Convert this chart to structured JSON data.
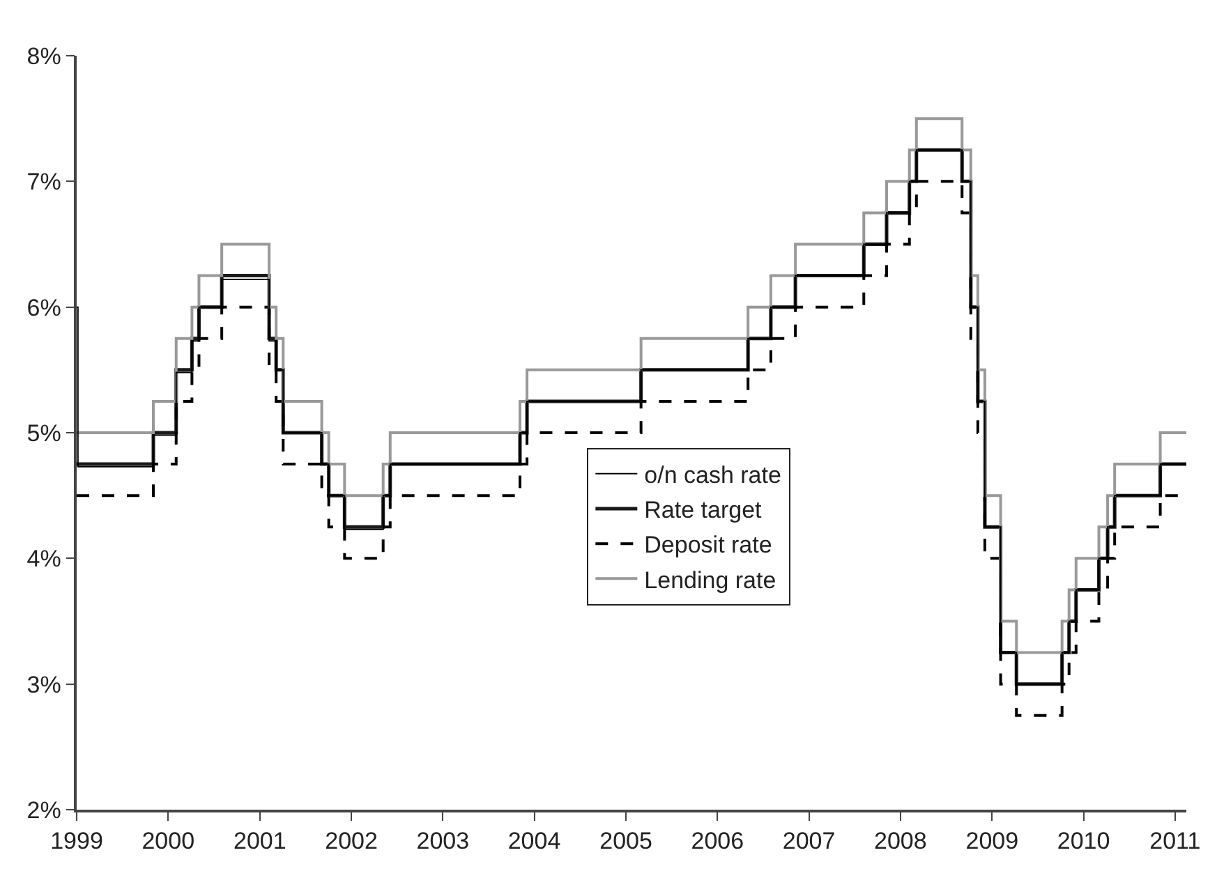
{
  "chart_data": {
    "type": "step",
    "xlim": [
      "1999-01-01",
      "2011-02-15"
    ],
    "xticks": [
      "1999",
      "2000",
      "2001",
      "2002",
      "2003",
      "2004",
      "2005",
      "2006",
      "2007",
      "2008",
      "2009",
      "2010",
      "2011"
    ],
    "ylim": [
      2,
      8
    ],
    "yticks": [
      {
        "value": 2,
        "label": "2%"
      },
      {
        "value": 3,
        "label": "3%"
      },
      {
        "value": 4,
        "label": "4%"
      },
      {
        "value": 5,
        "label": "5%"
      },
      {
        "value": 6,
        "label": "6%"
      },
      {
        "value": 7,
        "label": "7%"
      },
      {
        "value": 8,
        "label": "8%"
      }
    ],
    "x": [
      "1999-01-01",
      "1999-11-03",
      "2000-02-02",
      "2000-04-05",
      "2000-05-03",
      "2000-08-02",
      "2001-02-07",
      "2001-03-07",
      "2001-04-04",
      "2001-09-05",
      "2001-10-03",
      "2001-12-05",
      "2002-05-08",
      "2002-06-05",
      "2003-11-05",
      "2003-12-03",
      "2005-03-02",
      "2006-05-03",
      "2006-08-02",
      "2006-11-08",
      "2007-08-08",
      "2007-11-07",
      "2008-02-06",
      "2008-03-05",
      "2008-09-03",
      "2008-10-08",
      "2008-11-05",
      "2008-12-03",
      "2009-02-04",
      "2009-04-08",
      "2009-10-07",
      "2009-11-04",
      "2009-12-02",
      "2010-03-03",
      "2010-04-07",
      "2010-05-05",
      "2010-11-03",
      "2011-02-15"
    ],
    "grid": false,
    "legend": "center",
    "marker": "none",
    "series": [
      {
        "name": "o/n cash rate",
        "color": "#000000",
        "line_style": "solid",
        "x": [
          "1999-01-01",
          "1999-01-06",
          "1999-11-03",
          "2000-02-02",
          "2000-04-05",
          "2000-05-03",
          "2000-08-02",
          "2001-02-07",
          "2001-03-07",
          "2001-04-04",
          "2001-09-05",
          "2001-10-03",
          "2001-12-05",
          "2002-05-08",
          "2002-06-05",
          "2003-11-05",
          "2003-12-03",
          "2005-03-02",
          "2006-05-03",
          "2006-08-02",
          "2006-11-08",
          "2007-08-08",
          "2007-11-07",
          "2008-02-06",
          "2008-03-05",
          "2008-09-03",
          "2008-10-08",
          "2008-11-05",
          "2008-12-03",
          "2009-02-04",
          "2009-04-08",
          "2009-10-07",
          "2009-11-04",
          "2009-12-02",
          "2010-03-03",
          "2010-04-07",
          "2010-05-05",
          "2010-11-03",
          "2011-02-15"
        ],
        "values": [
          6.0,
          4.73,
          4.98,
          5.48,
          5.73,
          6.0,
          6.22,
          5.73,
          5.5,
          5.0,
          4.75,
          4.5,
          4.23,
          4.5,
          4.75,
          5.0,
          5.25,
          5.5,
          5.75,
          6.0,
          6.25,
          6.5,
          6.75,
          7.0,
          7.25,
          7.0,
          6.0,
          5.25,
          4.25,
          3.25,
          3.0,
          3.25,
          3.5,
          3.75,
          4.0,
          4.25,
          4.5,
          4.75,
          4.75
        ]
      },
      {
        "name": "Rate target",
        "color": "#1a1a1a",
        "line_style": "solid",
        "values": [
          4.75,
          5.0,
          5.5,
          5.75,
          6.0,
          6.25,
          5.75,
          5.5,
          5.0,
          4.75,
          4.5,
          4.25,
          4.5,
          4.75,
          5.0,
          5.25,
          5.5,
          5.75,
          6.0,
          6.25,
          6.5,
          6.75,
          7.0,
          7.25,
          7.0,
          6.0,
          5.25,
          4.25,
          3.25,
          3.0,
          3.25,
          3.5,
          3.75,
          4.0,
          4.25,
          4.5,
          4.75,
          4.75
        ]
      },
      {
        "name": "Deposit rate",
        "color": "#000000",
        "line_style": "dashed",
        "values": [
          4.5,
          4.75,
          5.25,
          5.5,
          5.75,
          6.0,
          5.5,
          5.25,
          4.75,
          4.5,
          4.25,
          4.0,
          4.25,
          4.5,
          4.75,
          5.0,
          5.25,
          5.5,
          5.75,
          6.0,
          6.25,
          6.5,
          6.75,
          7.0,
          6.75,
          5.75,
          5.0,
          4.0,
          3.0,
          2.75,
          3.0,
          3.25,
          3.5,
          3.75,
          4.0,
          4.25,
          4.5,
          4.5
        ]
      },
      {
        "name": "Lending rate",
        "color": "#999999",
        "line_style": "solid",
        "values": [
          5.0,
          5.25,
          5.75,
          6.0,
          6.25,
          6.5,
          6.0,
          5.75,
          5.25,
          5.0,
          4.75,
          4.5,
          4.75,
          5.0,
          5.25,
          5.5,
          5.75,
          6.0,
          6.25,
          6.5,
          6.75,
          7.0,
          7.25,
          7.5,
          7.25,
          6.25,
          5.5,
          4.5,
          3.5,
          3.25,
          3.5,
          3.75,
          4.0,
          4.25,
          4.5,
          4.75,
          5.0,
          5.0
        ]
      }
    ]
  }
}
